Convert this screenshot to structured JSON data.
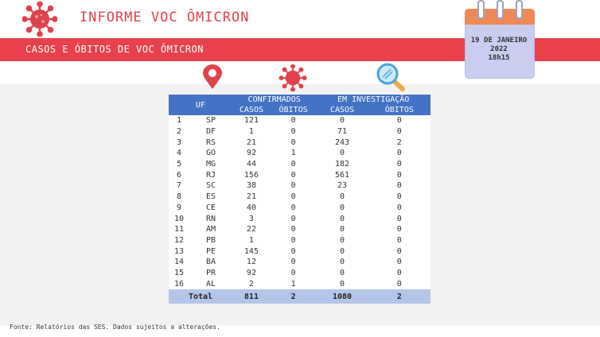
{
  "header": {
    "title": "INFORME VOC ÔMICRON",
    "subtitle": "CASOS E ÓBITOS DE VOC ÔMICRON"
  },
  "calendar": {
    "line1": "19 DE JANEIRO",
    "line2": "2022",
    "line3": "18h15"
  },
  "colors": {
    "red": "#e8414b",
    "table_header": "#4472c4",
    "total_row": "#b4c6e7",
    "calendar_body": "#c9cdf0",
    "calendar_top": "#ee8a57"
  },
  "icons": [
    "virus-icon",
    "calendar-icon",
    "location-pin-icon",
    "magnifier-icon"
  ],
  "table": {
    "header_uf": "UF",
    "header_confirmados": "CONFIRMADOS",
    "header_investigacao": "EM INVESTIGAÇÃO",
    "sub_casos": "CASOS",
    "sub_obitos": "ÓBITOS",
    "rows": [
      {
        "n": "1",
        "uf": "SP",
        "cc": "121",
        "co": "0",
        "ic": "0",
        "io": "0"
      },
      {
        "n": "2",
        "uf": "DF",
        "cc": "1",
        "co": "0",
        "ic": "71",
        "io": "0"
      },
      {
        "n": "3",
        "uf": "RS",
        "cc": "21",
        "co": "0",
        "ic": "243",
        "io": "2"
      },
      {
        "n": "4",
        "uf": "GO",
        "cc": "92",
        "co": "1",
        "ic": "0",
        "io": "0"
      },
      {
        "n": "5",
        "uf": "MG",
        "cc": "44",
        "co": "0",
        "ic": "182",
        "io": "0"
      },
      {
        "n": "6",
        "uf": "RJ",
        "cc": "156",
        "co": "0",
        "ic": "561",
        "io": "0"
      },
      {
        "n": "7",
        "uf": "SC",
        "cc": "38",
        "co": "0",
        "ic": "23",
        "io": "0"
      },
      {
        "n": "8",
        "uf": "ES",
        "cc": "21",
        "co": "0",
        "ic": "0",
        "io": "0"
      },
      {
        "n": "9",
        "uf": "CE",
        "cc": "40",
        "co": "0",
        "ic": "0",
        "io": "0"
      },
      {
        "n": "10",
        "uf": "RN",
        "cc": "3",
        "co": "0",
        "ic": "0",
        "io": "0"
      },
      {
        "n": "11",
        "uf": "AM",
        "cc": "22",
        "co": "0",
        "ic": "0",
        "io": "0"
      },
      {
        "n": "12",
        "uf": "PB",
        "cc": "1",
        "co": "0",
        "ic": "0",
        "io": "0"
      },
      {
        "n": "13",
        "uf": "PE",
        "cc": "145",
        "co": "0",
        "ic": "0",
        "io": "0"
      },
      {
        "n": "14",
        "uf": "BA",
        "cc": "12",
        "co": "0",
        "ic": "0",
        "io": "0"
      },
      {
        "n": "15",
        "uf": "PR",
        "cc": "92",
        "co": "0",
        "ic": "0",
        "io": "0"
      },
      {
        "n": "16",
        "uf": "AL",
        "cc": "2",
        "co": "1",
        "ic": "0",
        "io": "0"
      }
    ],
    "total": {
      "label": "Total",
      "cc": "811",
      "co": "2",
      "ic": "1080",
      "io": "2"
    }
  },
  "footer": "Fonte: Relatórios das SES. Dados sujeitos a alterações."
}
